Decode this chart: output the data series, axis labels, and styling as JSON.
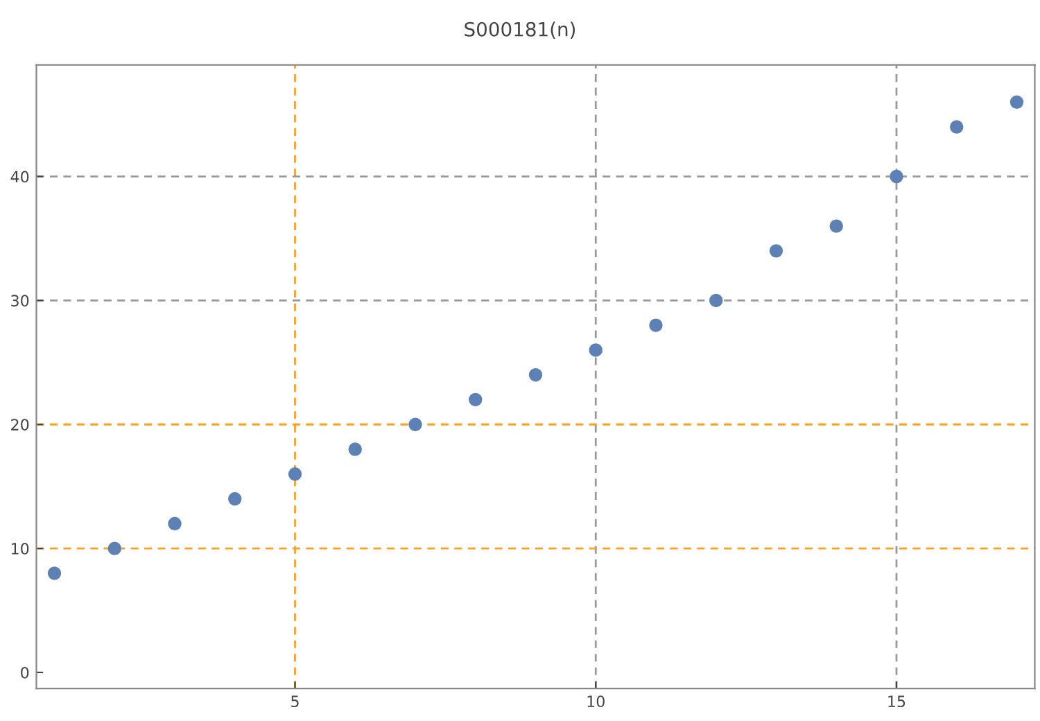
{
  "chart_data": {
    "type": "scatter",
    "title": "S000181(n)",
    "x": [
      1,
      2,
      3,
      4,
      5,
      6,
      7,
      8,
      9,
      10,
      11,
      12,
      13,
      14,
      15,
      16,
      17
    ],
    "values": [
      8,
      10,
      12,
      14,
      16,
      18,
      20,
      22,
      24,
      26,
      28,
      30,
      34,
      36,
      40,
      44,
      46
    ],
    "color": "#5e81b5",
    "marker": "circle",
    "xlim": [
      0.7,
      17.3
    ],
    "ylim": [
      -1.3,
      49
    ],
    "xticks": [
      5,
      10,
      15
    ],
    "yticks": [
      0,
      10,
      20,
      30,
      40
    ],
    "ref_lines": [
      {
        "axis": "x",
        "value": 5,
        "color": "#ff9f1c",
        "line_style": "dashed"
      },
      {
        "axis": "x",
        "value": 10,
        "color": "#999999",
        "line_style": "dashed"
      },
      {
        "axis": "x",
        "value": 15,
        "color": "#999999",
        "line_style": "dashed"
      },
      {
        "axis": "y",
        "value": 10,
        "color": "#ff9f1c",
        "line_style": "dashed"
      },
      {
        "axis": "y",
        "value": 20,
        "color": "#ff9f1c",
        "line_style": "dashed"
      },
      {
        "axis": "y",
        "value": 30,
        "color": "#999999",
        "line_style": "dashed"
      },
      {
        "axis": "y",
        "value": 40,
        "color": "#999999",
        "line_style": "dashed"
      }
    ]
  }
}
